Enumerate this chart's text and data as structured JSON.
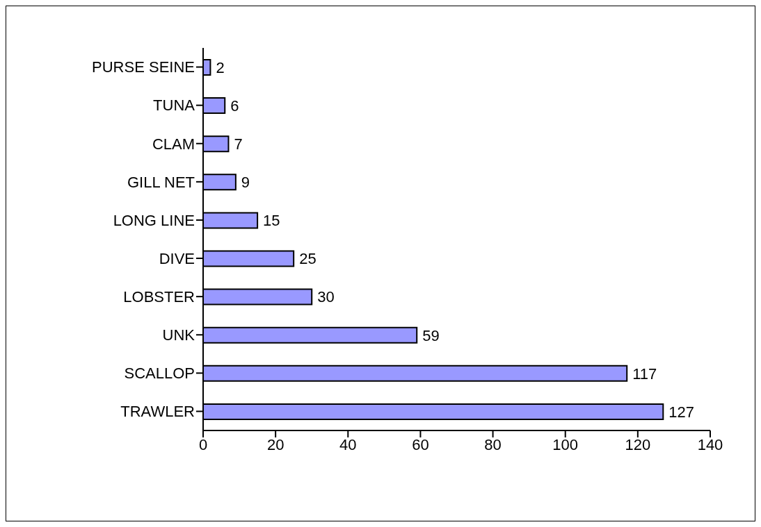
{
  "chart_data": {
    "type": "bar",
    "orientation": "horizontal",
    "categories": [
      "PURSE SEINE",
      "TUNA",
      "CLAM",
      "GILL NET",
      "LONG LINE",
      "DIVE",
      "LOBSTER",
      "UNK",
      "SCALLOP",
      "TRAWLER"
    ],
    "values": [
      2,
      6,
      7,
      9,
      15,
      25,
      30,
      59,
      117,
      127
    ],
    "color": "#9999ff",
    "xlim": [
      0,
      140
    ],
    "xticks": [
      0,
      20,
      40,
      60,
      80,
      100,
      120,
      140
    ],
    "data_labels": true,
    "grid": false
  }
}
